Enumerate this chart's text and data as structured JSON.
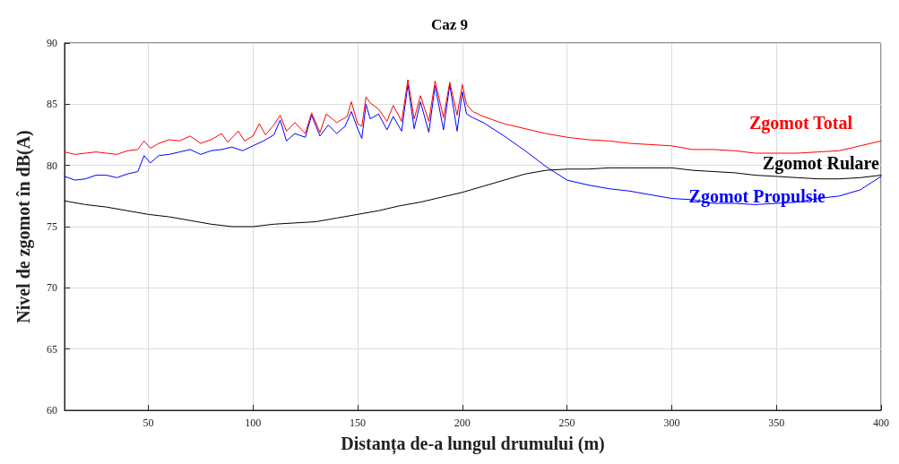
{
  "chart_data": {
    "type": "line",
    "title": "Caz 9",
    "xlabel": "Distanța de-a lungul drumului (m)",
    "ylabel": "Nivel de zgomot în dB(A)",
    "xlim": [
      10,
      400
    ],
    "xticks": [
      50,
      100,
      150,
      200,
      250,
      300,
      350,
      400
    ],
    "ylim": [
      60,
      90
    ],
    "yticks": [
      60,
      65,
      70,
      75,
      80,
      85,
      90
    ],
    "grid": true,
    "legend": false,
    "marker": "none",
    "line_style": "solid",
    "series": [
      {
        "name": "Zgomot Total",
        "color": "#ff0000",
        "x": [
          10,
          15,
          20,
          25,
          30,
          35,
          40,
          45,
          48,
          51,
          55,
          60,
          65,
          70,
          75,
          80,
          85,
          88,
          93,
          96,
          100,
          103,
          106,
          110,
          113,
          116,
          120,
          125,
          128,
          132,
          135,
          140,
          145,
          147,
          150,
          152,
          154,
          156,
          160,
          164,
          167,
          171,
          174,
          177,
          180,
          184,
          187,
          191,
          194,
          197.5,
          200,
          202,
          205,
          210,
          220,
          230,
          240,
          250,
          260,
          270,
          280,
          290,
          300,
          310,
          320,
          330,
          340,
          350,
          360,
          370,
          380,
          390,
          400
        ],
        "values": [
          81.1,
          80.9,
          81.0,
          81.1,
          81.0,
          80.9,
          81.2,
          81.3,
          82.0,
          81.4,
          81.8,
          82.1,
          82.0,
          82.4,
          81.8,
          82.1,
          82.6,
          81.9,
          82.8,
          82.0,
          82.4,
          83.4,
          82.5,
          83.3,
          84.1,
          82.8,
          83.5,
          82.6,
          84.3,
          82.7,
          84.2,
          83.5,
          84.0,
          85.2,
          83.4,
          83.2,
          85.6,
          85.1,
          84.6,
          83.6,
          84.9,
          83.6,
          87.0,
          83.8,
          85.7,
          83.6,
          86.9,
          83.9,
          86.8,
          84.1,
          86.6,
          85.0,
          84.4,
          84.0,
          83.4,
          83.0,
          82.6,
          82.3,
          82.1,
          82.0,
          81.8,
          81.7,
          81.6,
          81.3,
          81.3,
          81.2,
          81.0,
          81.0,
          81.0,
          81.1,
          81.2,
          81.6,
          82.0
        ]
      },
      {
        "name": "Zgomot Rulare",
        "color": "#000000",
        "x": [
          10,
          20,
          30,
          40,
          50,
          60,
          70,
          80,
          90,
          100,
          110,
          120,
          130,
          140,
          150,
          160,
          170,
          180,
          190,
          200,
          210,
          220,
          230,
          240,
          250,
          260,
          270,
          280,
          290,
          300,
          310,
          320,
          330,
          340,
          350,
          360,
          370,
          380,
          390,
          400
        ],
        "values": [
          77.1,
          76.8,
          76.6,
          76.3,
          76.0,
          75.8,
          75.5,
          75.2,
          75.0,
          75.0,
          75.2,
          75.3,
          75.4,
          75.7,
          76.0,
          76.3,
          76.7,
          77.0,
          77.4,
          77.8,
          78.3,
          78.8,
          79.3,
          79.6,
          79.7,
          79.7,
          79.8,
          79.8,
          79.8,
          79.8,
          79.6,
          79.5,
          79.4,
          79.2,
          79.1,
          79.0,
          78.9,
          78.9,
          79.0,
          79.2
        ]
      },
      {
        "name": "Zgomot Propulsie",
        "color": "#0000ff",
        "x": [
          10,
          15,
          20,
          25,
          30,
          35,
          40,
          45,
          48,
          51,
          55,
          60,
          65,
          70,
          75,
          80,
          85,
          90,
          95,
          100,
          105,
          110,
          113,
          116,
          120,
          125,
          128,
          132,
          136,
          140,
          144,
          147,
          150,
          152,
          154,
          156,
          160,
          164,
          167,
          171,
          174,
          177,
          180,
          184,
          187,
          191,
          194,
          197.5,
          200,
          202,
          205,
          210,
          220,
          230,
          240,
          250,
          260,
          270,
          280,
          290,
          300,
          310,
          320,
          330,
          340,
          350,
          360,
          370,
          380,
          390,
          400
        ],
        "values": [
          79.1,
          78.8,
          78.9,
          79.2,
          79.2,
          79.0,
          79.3,
          79.5,
          80.8,
          80.2,
          80.8,
          80.9,
          81.1,
          81.3,
          80.9,
          81.2,
          81.3,
          81.5,
          81.2,
          81.6,
          82.0,
          82.5,
          83.7,
          82.0,
          82.6,
          82.3,
          84.1,
          82.4,
          83.3,
          82.6,
          83.2,
          84.4,
          83.0,
          82.2,
          85.0,
          83.8,
          84.2,
          82.9,
          84.0,
          82.8,
          86.6,
          83.0,
          85.2,
          82.7,
          86.5,
          82.9,
          86.6,
          82.8,
          86.0,
          84.2,
          83.9,
          83.5,
          82.4,
          81.2,
          79.9,
          78.8,
          78.4,
          78.1,
          77.9,
          77.6,
          77.3,
          77.2,
          76.9,
          76.9,
          76.8,
          76.9,
          77.0,
          77.3,
          77.5,
          78.0,
          79.1
        ]
      }
    ]
  }
}
